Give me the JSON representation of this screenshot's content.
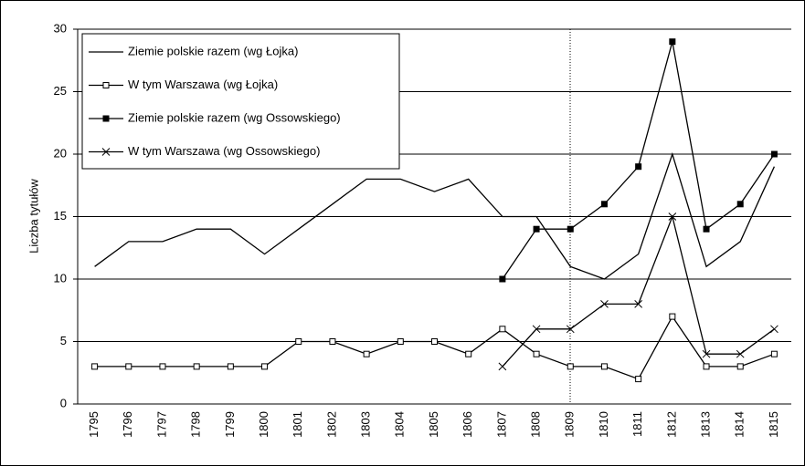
{
  "chart_data": {
    "type": "line",
    "y_label": "Liczba tytułów",
    "categories": [
      "1795",
      "1796",
      "1797",
      "1798",
      "1799",
      "1800",
      "1801",
      "1802",
      "1803",
      "1804",
      "1805",
      "1806",
      "1807",
      "1808",
      "1809",
      "1810",
      "1811",
      "1812",
      "1813",
      "1814",
      "1815"
    ],
    "series": [
      {
        "name": "Ziemie polskie razem (wg Łojka)",
        "color": "#000000",
        "marker": "none",
        "values": [
          11,
          13,
          13,
          14,
          14,
          12,
          14,
          16,
          18,
          18,
          17,
          18,
          15,
          15,
          11,
          10,
          12,
          20,
          11,
          13,
          19
        ]
      },
      {
        "name": "W tym Warszawa (wg Łojka)",
        "color": "#000000",
        "marker": "open-square",
        "values": [
          3,
          3,
          3,
          3,
          3,
          3,
          5,
          5,
          4,
          5,
          5,
          4,
          6,
          4,
          3,
          3,
          2,
          7,
          3,
          3,
          4
        ]
      },
      {
        "name": "Ziemie polskie razem (wg Ossowskiego)",
        "color": "#000000",
        "marker": "filled-square",
        "values": [
          null,
          null,
          null,
          null,
          null,
          null,
          null,
          null,
          null,
          null,
          null,
          null,
          10,
          14,
          14,
          16,
          19,
          29,
          14,
          16,
          20
        ]
      },
      {
        "name": "W tym Warszawa (wg Ossowskiego)",
        "color": "#000000",
        "marker": "x",
        "values": [
          null,
          null,
          null,
          null,
          null,
          null,
          null,
          null,
          null,
          null,
          null,
          null,
          3,
          6,
          6,
          8,
          8,
          15,
          4,
          4,
          6
        ]
      }
    ],
    "ylim": [
      0,
      30
    ],
    "yticks": [
      0,
      5,
      10,
      15,
      20,
      25,
      30
    ],
    "grid": true,
    "legend": "upper-left"
  }
}
